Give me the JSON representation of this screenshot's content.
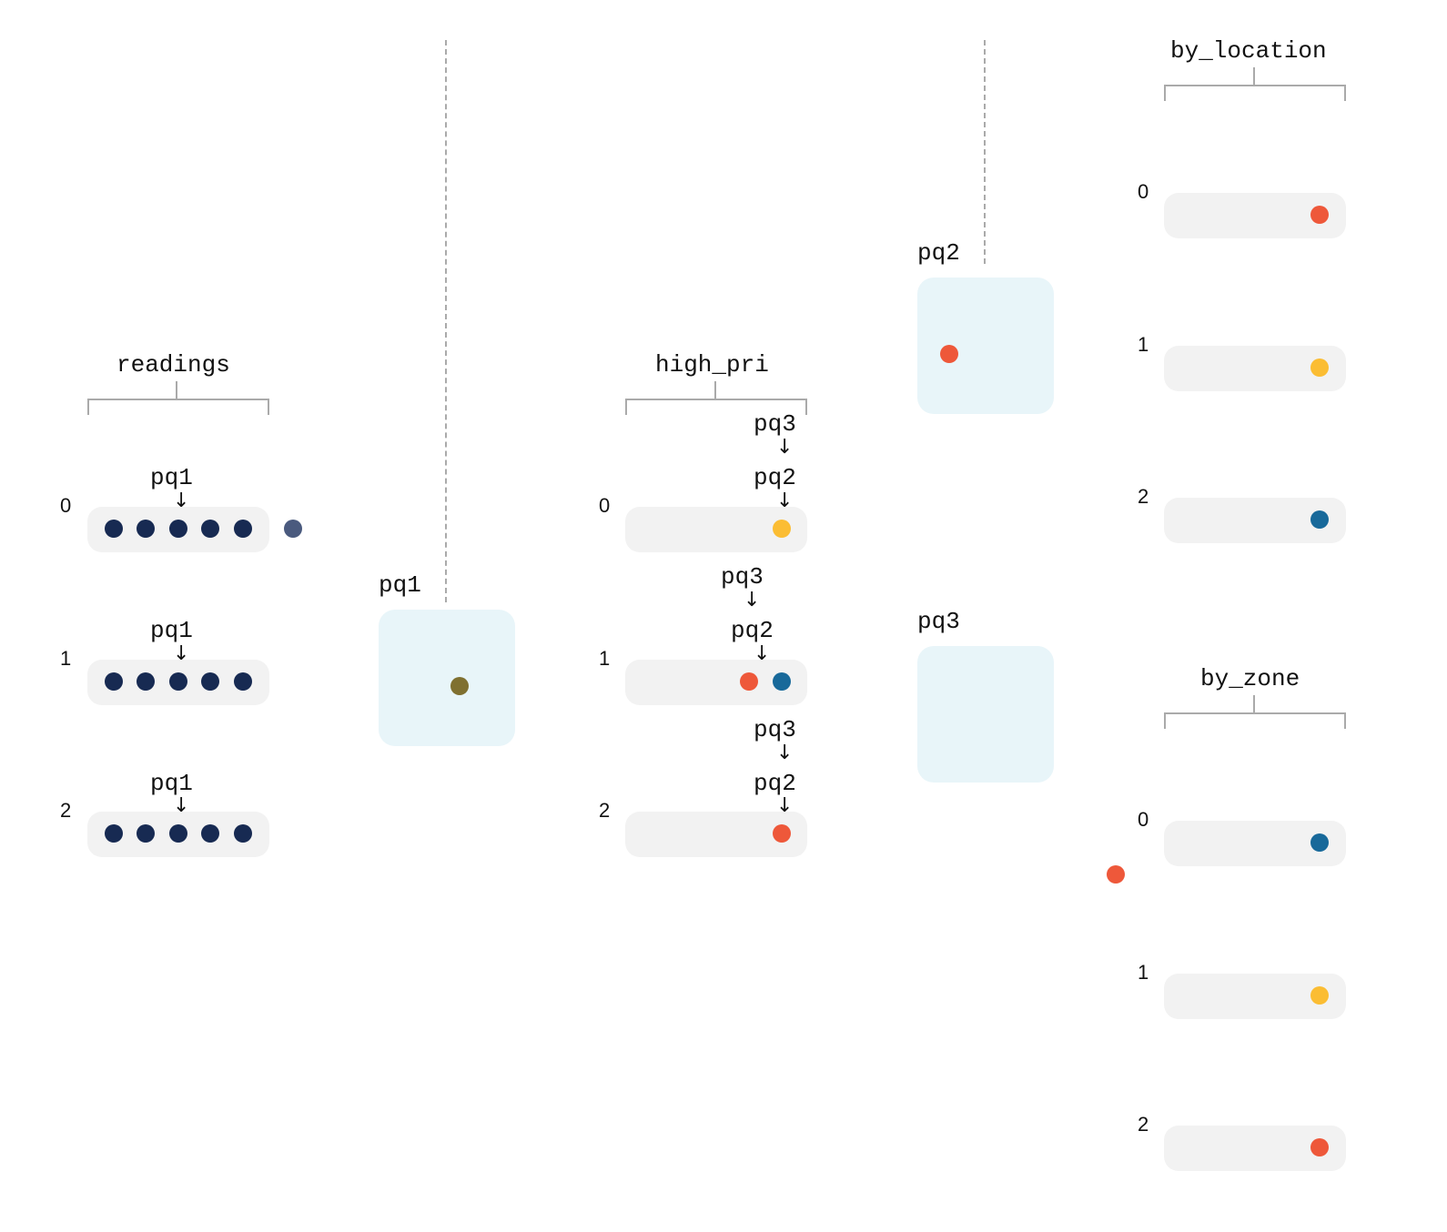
{
  "colors": {
    "navy": "#172a52",
    "slate": "#4a5a7e",
    "olive": "#7f7030",
    "red": "#ee583a",
    "yellow": "#fbbd33",
    "blue": "#18699a",
    "row_bg": "#f2f2f2",
    "proc_bg": "#e8f5f9"
  },
  "readings": {
    "title": "readings",
    "indices": [
      "0",
      "1",
      "2"
    ],
    "pointer": "pq1",
    "arrow": "↓"
  },
  "pq1_box": {
    "label": "pq1"
  },
  "high_pri": {
    "title": "high_pri",
    "indices": [
      "0",
      "1",
      "2"
    ],
    "pointer_a": "pq3",
    "pointer_b": "pq2",
    "arrow": "↓"
  },
  "pq2_box": {
    "label": "pq2"
  },
  "pq3_box": {
    "label": "pq3"
  },
  "by_location": {
    "title": "by_location",
    "indices": [
      "0",
      "1",
      "2"
    ]
  },
  "by_zone": {
    "title": "by_zone",
    "indices": [
      "0",
      "1",
      "2"
    ]
  }
}
